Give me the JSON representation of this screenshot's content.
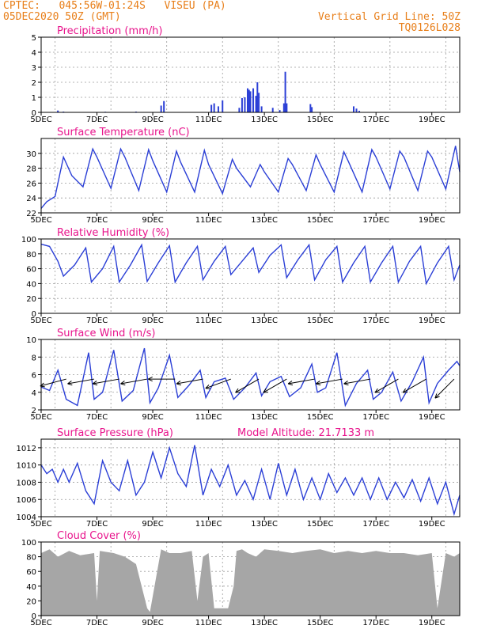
{
  "header": {
    "line1": "CPTEC:   045:56W-01:24S   VISEU (PA)",
    "line2": "05DEC2020 50Z (GMT)",
    "right1": "Vertical Grid Line: 50Z",
    "right2": "TQ0126L028"
  },
  "colors": {
    "header": "#e87f1a",
    "title": "#e8148c",
    "series": "#2b3fd6",
    "cloud": "#a6a6a6",
    "grid": "#9a9a9a",
    "wind_arrow": "#000000"
  },
  "chart_data": [
    {
      "type": "bar",
      "title": "Precipitation (mm/h)",
      "x_ticks": [
        "5DEC",
        "7DEC",
        "9DEC",
        "11DEC",
        "13DEC",
        "15DEC",
        "17DEC",
        "19DEC"
      ],
      "y_ticks": [
        "0",
        "1",
        "2",
        "3",
        "4",
        "5"
      ],
      "ylim": [
        0,
        5
      ],
      "xlim_days": [
        5,
        20
      ],
      "grid": true,
      "bars": [
        [
          5.6,
          0.12
        ],
        [
          5.8,
          0.05
        ],
        [
          7.3,
          0.04
        ],
        [
          8.4,
          0.05
        ],
        [
          9.3,
          0.45
        ],
        [
          9.4,
          0.75
        ],
        [
          11.1,
          0.5
        ],
        [
          11.2,
          0.6
        ],
        [
          11.35,
          0.4
        ],
        [
          11.5,
          0.8
        ],
        [
          12.1,
          0.3
        ],
        [
          12.2,
          0.95
        ],
        [
          12.3,
          1.0
        ],
        [
          12.4,
          1.6
        ],
        [
          12.45,
          1.5
        ],
        [
          12.5,
          1.4
        ],
        [
          12.6,
          1.6
        ],
        [
          12.7,
          1.1
        ],
        [
          12.75,
          2.0
        ],
        [
          12.8,
          1.3
        ],
        [
          12.9,
          0.4
        ],
        [
          13.3,
          0.3
        ],
        [
          13.55,
          0.15
        ],
        [
          13.7,
          0.6
        ],
        [
          13.75,
          2.7
        ],
        [
          13.8,
          0.6
        ],
        [
          14.65,
          0.55
        ],
        [
          14.7,
          0.35
        ],
        [
          16.2,
          0.4
        ],
        [
          16.3,
          0.25
        ],
        [
          16.4,
          0.1
        ]
      ]
    },
    {
      "type": "line",
      "title": "Surface Temperature (nC)",
      "x_ticks": [
        "5DEC",
        "7DEC",
        "9DEC",
        "11DEC",
        "13DEC",
        "15DEC",
        "17DEC",
        "19DEC"
      ],
      "y_ticks": [
        "22",
        "24",
        "26",
        "28",
        "30"
      ],
      "ylim": [
        22,
        32
      ],
      "xlim_days": [
        5,
        20
      ],
      "grid": true,
      "series": [
        {
          "x": [
            5.0,
            5.2,
            5.5,
            5.8,
            6.1,
            6.5,
            6.85,
            7.0,
            7.5,
            7.85,
            8.0,
            8.5,
            8.85,
            9.0,
            9.5,
            9.85,
            10.0,
            10.5,
            10.85,
            11.0,
            11.5,
            11.85,
            12.0,
            12.5,
            12.85,
            13.0,
            13.5,
            13.85,
            14.0,
            14.5,
            14.85,
            15.0,
            15.5,
            15.85,
            16.0,
            16.5,
            16.85,
            17.0,
            17.5,
            17.85,
            18.0,
            18.5,
            18.85,
            19.0,
            19.5,
            19.85,
            20.0
          ],
          "y": [
            22.6,
            23.5,
            24.2,
            29.5,
            27.0,
            25.5,
            30.6,
            29.5,
            25.3,
            30.6,
            29.5,
            25.0,
            30.5,
            29.0,
            24.8,
            30.3,
            28.8,
            24.8,
            30.4,
            28.5,
            24.6,
            29.2,
            28.0,
            25.5,
            28.5,
            27.5,
            24.8,
            29.3,
            28.5,
            25.0,
            29.8,
            28.5,
            24.8,
            30.2,
            29.0,
            24.8,
            30.5,
            29.5,
            25.2,
            30.3,
            29.5,
            25.0,
            30.3,
            29.5,
            25.2,
            31.0,
            27.5
          ]
        }
      ]
    },
    {
      "type": "line",
      "title": "Relative Humidity (%)",
      "x_ticks": [
        "5DEC",
        "7DEC",
        "9DEC",
        "11DEC",
        "13DEC",
        "15DEC",
        "17DEC",
        "19DEC"
      ],
      "y_ticks": [
        "0",
        "20",
        "40",
        "60",
        "80",
        "100"
      ],
      "ylim": [
        0,
        100
      ],
      "xlim_days": [
        5,
        20
      ],
      "grid": true,
      "series": [
        {
          "x": [
            5.0,
            5.3,
            5.6,
            5.8,
            6.2,
            6.6,
            6.8,
            7.2,
            7.6,
            7.8,
            8.2,
            8.6,
            8.8,
            9.2,
            9.6,
            9.8,
            10.2,
            10.6,
            10.8,
            11.2,
            11.6,
            11.8,
            12.2,
            12.6,
            12.8,
            13.2,
            13.6,
            13.8,
            14.2,
            14.6,
            14.8,
            15.2,
            15.6,
            15.8,
            16.2,
            16.6,
            16.8,
            17.2,
            17.6,
            17.8,
            18.2,
            18.6,
            18.8,
            19.2,
            19.6,
            19.8,
            20.0
          ],
          "y": [
            93,
            90,
            70,
            50,
            65,
            88,
            42,
            60,
            90,
            42,
            65,
            92,
            43,
            68,
            91,
            42,
            68,
            90,
            45,
            70,
            90,
            52,
            70,
            88,
            55,
            78,
            92,
            48,
            72,
            92,
            45,
            72,
            90,
            42,
            68,
            90,
            42,
            68,
            90,
            42,
            70,
            90,
            40,
            68,
            90,
            45,
            65
          ]
        }
      ]
    },
    {
      "type": "line",
      "title": "Surface Wind (m/s)",
      "x_ticks": [
        "5DEC",
        "7DEC",
        "9DEC",
        "11DEC",
        "13DEC",
        "15DEC",
        "17DEC",
        "19DEC"
      ],
      "y_ticks": [
        "2",
        "4",
        "6",
        "8",
        "10"
      ],
      "ylim": [
        2,
        10
      ],
      "xlim_days": [
        5,
        20
      ],
      "grid": true,
      "series": [
        {
          "x": [
            5.0,
            5.3,
            5.6,
            5.9,
            6.3,
            6.7,
            6.9,
            7.2,
            7.6,
            7.9,
            8.3,
            8.7,
            8.9,
            9.2,
            9.6,
            9.9,
            10.3,
            10.7,
            10.9,
            11.2,
            11.6,
            11.9,
            12.3,
            12.7,
            12.9,
            13.2,
            13.6,
            13.9,
            14.3,
            14.7,
            14.9,
            15.2,
            15.6,
            15.9,
            16.3,
            16.7,
            16.9,
            17.2,
            17.6,
            17.9,
            18.3,
            18.7,
            18.9,
            19.2,
            19.6,
            19.9,
            20.0
          ],
          "y": [
            4.6,
            4.2,
            6.5,
            3.2,
            2.5,
            8.5,
            3.2,
            4.0,
            8.8,
            3.0,
            4.2,
            9.0,
            2.8,
            4.5,
            8.2,
            3.4,
            4.8,
            6.5,
            3.4,
            5.2,
            5.6,
            3.2,
            4.5,
            6.2,
            3.6,
            5.2,
            5.8,
            3.5,
            4.5,
            7.2,
            4.0,
            4.5,
            8.5,
            2.5,
            5.0,
            6.5,
            3.2,
            4.0,
            6.3,
            3.0,
            5.2,
            8.0,
            2.8,
            5.0,
            6.5,
            7.5,
            7.0
          ]
        }
      ],
      "vectors_days": [
        5.9,
        6.9,
        7.8,
        8.8,
        9.8,
        10.8,
        11.8,
        12.8,
        13.8,
        14.8,
        15.8,
        16.8,
        17.8,
        18.8,
        19.8
      ],
      "vectors_deg": [
        15,
        10,
        10,
        10,
        0,
        10,
        20,
        30,
        30,
        10,
        10,
        10,
        30,
        30,
        45
      ]
    },
    {
      "type": "line",
      "title": "Surface Pressure (hPa)",
      "annotation": "Model Altitude: 21.7133 m",
      "x_ticks": [
        "5DEC",
        "7DEC",
        "9DEC",
        "11DEC",
        "13DEC",
        "15DEC",
        "17DEC",
        "19DEC"
      ],
      "y_ticks": [
        "1004",
        "1006",
        "1008",
        "1010",
        "1012"
      ],
      "ylim": [
        1004,
        1013
      ],
      "xlim_days": [
        5,
        20
      ],
      "grid": true,
      "series": [
        {
          "x": [
            5.0,
            5.2,
            5.4,
            5.6,
            5.8,
            6.0,
            6.3,
            6.6,
            6.9,
            7.2,
            7.5,
            7.8,
            8.1,
            8.4,
            8.7,
            9.0,
            9.3,
            9.6,
            9.9,
            10.2,
            10.5,
            10.8,
            11.1,
            11.4,
            11.7,
            12.0,
            12.3,
            12.6,
            12.9,
            13.2,
            13.5,
            13.8,
            14.1,
            14.4,
            14.7,
            15.0,
            15.3,
            15.6,
            15.9,
            16.2,
            16.5,
            16.8,
            17.1,
            17.4,
            17.7,
            18.0,
            18.3,
            18.6,
            18.9,
            19.2,
            19.5,
            19.8,
            20.0
          ],
          "y": [
            1010,
            1009,
            1009.5,
            1008,
            1009.5,
            1008,
            1010.2,
            1007,
            1005.5,
            1010.5,
            1008,
            1007,
            1010.5,
            1006.5,
            1008,
            1011.5,
            1008.5,
            1012,
            1009,
            1007.5,
            1012.3,
            1006.5,
            1009.5,
            1007.5,
            1010,
            1006.5,
            1008.2,
            1006,
            1009.5,
            1006,
            1010.2,
            1006.5,
            1009.5,
            1006,
            1008.5,
            1006,
            1009,
            1006.8,
            1008.5,
            1006.5,
            1008.5,
            1006,
            1008.5,
            1006,
            1008,
            1006.2,
            1008.3,
            1005.8,
            1008.5,
            1005.5,
            1008,
            1004.3,
            1006.5
          ]
        }
      ]
    },
    {
      "type": "area",
      "title": "Cloud Cover (%)",
      "x_ticks": [
        "5DEC",
        "7DEC",
        "9DEC",
        "11DEC",
        "13DEC",
        "15DEC",
        "17DEC",
        "19DEC"
      ],
      "y_ticks": [
        "0",
        "20",
        "40",
        "60",
        "80",
        "100"
      ],
      "ylim": [
        0,
        100
      ],
      "xlim_days": [
        5,
        20
      ],
      "grid": true,
      "series": [
        {
          "x": [
            5.0,
            5.3,
            5.6,
            6.0,
            6.4,
            6.9,
            7.0,
            7.1,
            7.6,
            8.0,
            8.4,
            8.8,
            8.9,
            9.3,
            9.6,
            10.0,
            10.4,
            10.6,
            10.8,
            11.0,
            11.2,
            11.4,
            11.7,
            11.9,
            12.0,
            12.2,
            12.4,
            12.7,
            13.0,
            13.5,
            14.0,
            14.5,
            15.0,
            15.5,
            16.0,
            16.5,
            17.0,
            17.5,
            18.0,
            18.5,
            19.0,
            19.2,
            19.5,
            19.8,
            20.0
          ],
          "y": [
            85,
            90,
            80,
            88,
            82,
            85,
            20,
            88,
            85,
            80,
            70,
            10,
            5,
            90,
            85,
            85,
            88,
            20,
            80,
            85,
            10,
            10,
            10,
            40,
            88,
            90,
            85,
            80,
            90,
            88,
            85,
            88,
            90,
            85,
            88,
            85,
            88,
            85,
            85,
            82,
            85,
            10,
            85,
            80,
            85
          ]
        }
      ]
    }
  ]
}
